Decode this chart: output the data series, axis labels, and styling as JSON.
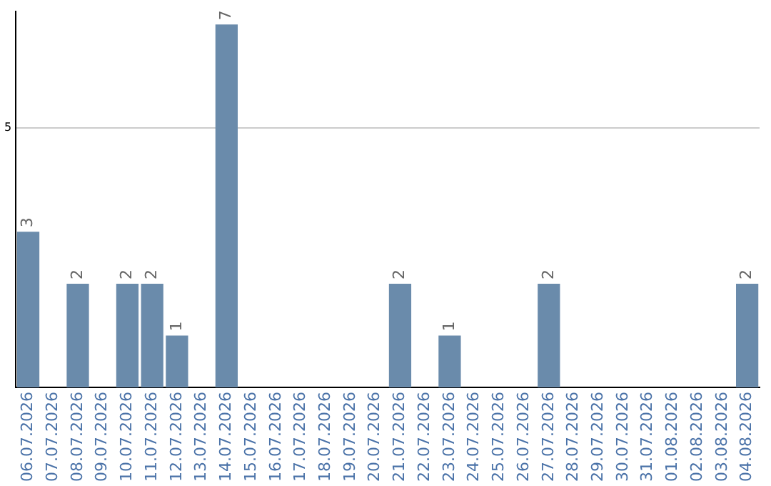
{
  "chart_data": {
    "type": "bar",
    "categories": [
      "06.07.2026",
      "07.07.2026",
      "08.07.2026",
      "09.07.2026",
      "10.07.2026",
      "11.07.2026",
      "12.07.2026",
      "13.07.2026",
      "14.07.2026",
      "15.07.2026",
      "16.07.2026",
      "17.07.2026",
      "18.07.2026",
      "19.07.2026",
      "20.07.2026",
      "21.07.2026",
      "22.07.2026",
      "23.07.2026",
      "24.07.2026",
      "25.07.2026",
      "26.07.2026",
      "27.07.2026",
      "28.07.2026",
      "29.07.2026",
      "30.07.2026",
      "31.07.2026",
      "01.08.2026",
      "02.08.2026",
      "03.08.2026",
      "04.08.2026"
    ],
    "values": [
      3,
      0,
      2,
      0,
      2,
      2,
      1,
      0,
      7,
      0,
      0,
      0,
      0,
      0,
      0,
      2,
      0,
      1,
      0,
      0,
      0,
      2,
      0,
      0,
      0,
      0,
      0,
      0,
      0,
      2
    ],
    "value_labels": [
      "3",
      null,
      "2",
      null,
      "2",
      "2",
      "1",
      null,
      "7",
      null,
      null,
      null,
      null,
      null,
      null,
      "2",
      null,
      "1",
      null,
      null,
      null,
      "2",
      null,
      null,
      null,
      null,
      null,
      null,
      null,
      "2"
    ],
    "color": "#6a8bab",
    "ylim": [
      0,
      7.25
    ],
    "yticks": [
      5
    ],
    "grid": "y",
    "legend": false
  }
}
